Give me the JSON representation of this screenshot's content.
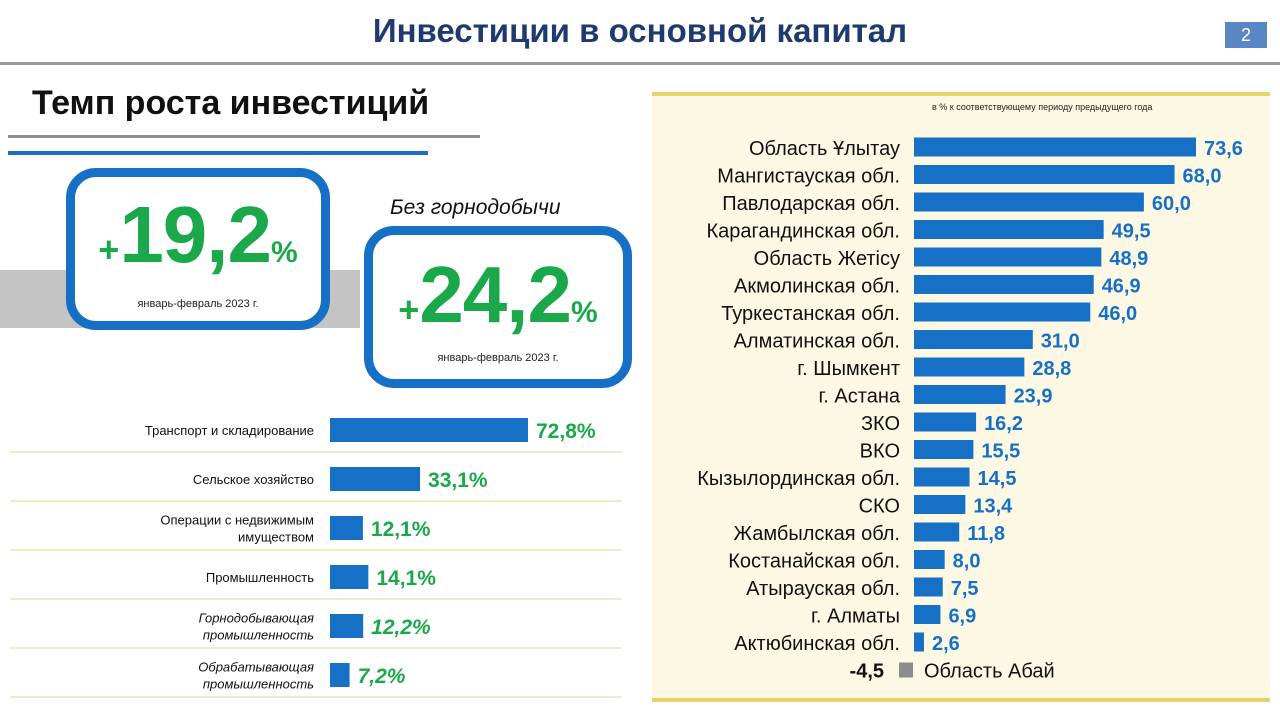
{
  "header": {
    "title": "Инвестиции в основной капитал",
    "page_number": "2"
  },
  "section_title": "Темп роста инвестиций",
  "kpis": [
    {
      "sign": "+",
      "value": "19,2",
      "unit": "%",
      "period": "январь-февраль 2023 г."
    },
    {
      "caption": "Без горнодобычи",
      "sign": "+",
      "value": "24,2",
      "unit": "%",
      "period": "январь-февраль 2023 г."
    }
  ],
  "chart_data": [
    {
      "type": "bar",
      "orientation": "horizontal",
      "categories": [
        "Транспорт и складирование",
        "Сельское хозяйство",
        "Операции с недвижимым имуществом",
        "Промышленность",
        "Горнодобывающая промышленность",
        "Обрабатывающая промышленность"
      ],
      "category_lines": [
        [
          "Транспорт и складирование"
        ],
        [
          "Сельское хозяйство"
        ],
        [
          "Операции с недвижимым",
          "имуществом"
        ],
        [
          "Промышленность"
        ],
        [
          "Горнодобывающая",
          "промышленность"
        ],
        [
          "Обрабатывающая",
          "промышленность"
        ]
      ],
      "italic": [
        false,
        false,
        false,
        false,
        true,
        true
      ],
      "values": [
        72.8,
        33.1,
        12.1,
        14.1,
        12.2,
        7.2
      ],
      "value_labels": [
        "72,8%",
        "33,1%",
        "12,1%",
        "14,1%",
        "12,2%",
        "7,2%"
      ],
      "bar_color": "#1670c6",
      "label_color": "#1aa84a"
    },
    {
      "type": "bar",
      "orientation": "horizontal",
      "note": "в % к соответствующему периоду предыдущего года",
      "categories": [
        "Область Ұлытау",
        "Мангистауская обл.",
        "Павлодарская обл.",
        "Карагандинская обл.",
        "Область Жетісу",
        "Акмолинская обл.",
        "Туркестанская обл.",
        "Алматинская обл.",
        "г. Шымкент",
        "г. Астана",
        "ЗКО",
        "ВКО",
        "Кызылординская обл.",
        "СКО",
        "Жамбылская обл.",
        "Костанайская обл.",
        "Атырауская обл.",
        "г. Алматы",
        "Актюбинская обл.",
        "Область Абай"
      ],
      "values": [
        73.6,
        68.0,
        60.0,
        49.5,
        48.9,
        46.9,
        46.0,
        31.0,
        28.8,
        23.9,
        16.2,
        15.5,
        14.5,
        13.4,
        11.8,
        8.0,
        7.5,
        6.9,
        2.6,
        -4.5
      ],
      "value_labels": [
        "73,6",
        "68,0",
        "60,0",
        "49,5",
        "48,9",
        "46,9",
        "46,0",
        "31,0",
        "28,8",
        "23,9",
        "16,2",
        "15,5",
        "14,5",
        "13,4",
        "11,8",
        "8,0",
        "7,5",
        "6,9",
        "2,6",
        "-4,5"
      ],
      "bar_color": "#1670c6",
      "negative_bar_color": "#8c8c8c",
      "label_color": "#1670c6",
      "negative_label_color": "#111111"
    }
  ]
}
